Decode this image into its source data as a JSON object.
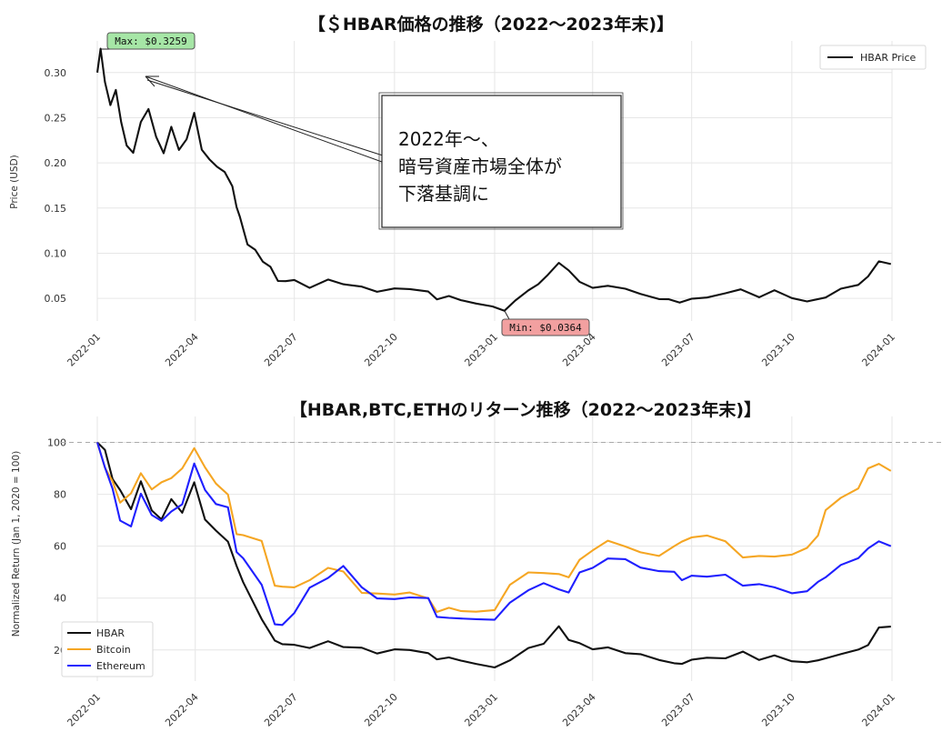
{
  "chart_data": [
    {
      "type": "line",
      "title": "【＄HBAR価格の推移（2022〜2023年末)】",
      "xlabel": "",
      "ylabel": "Price (USD)",
      "ylim": [
        0.025,
        0.335
      ],
      "yticks": [
        0.05,
        0.1,
        0.15,
        0.2,
        0.25,
        0.3
      ],
      "ytick_labels": [
        "0.05",
        "0.10",
        "0.15",
        "0.20",
        "0.25",
        "0.30"
      ],
      "xticks": [
        "2022-01",
        "2022-04",
        "2022-07",
        "2022-10",
        "2023-01",
        "2023-04",
        "2023-07",
        "2023-10",
        "2024-01"
      ],
      "grid": true,
      "legend": {
        "position": "top-right",
        "entries": [
          "HBAR Price"
        ]
      },
      "series": [
        {
          "name": "HBAR Price",
          "color": "#111111",
          "x": [
            "2022-01-01",
            "2022-01-04",
            "2022-01-08",
            "2022-01-13",
            "2022-01-18",
            "2022-01-23",
            "2022-01-28",
            "2022-02-03",
            "2022-02-10",
            "2022-02-17",
            "2022-02-24",
            "2022-03-03",
            "2022-03-10",
            "2022-03-17",
            "2022-03-24",
            "2022-03-31",
            "2022-04-07",
            "2022-04-14",
            "2022-04-21",
            "2022-04-28",
            "2022-05-05",
            "2022-05-09",
            "2022-05-12",
            "2022-05-19",
            "2022-05-26",
            "2022-06-02",
            "2022-06-09",
            "2022-06-16",
            "2022-06-23",
            "2022-07-01",
            "2022-07-15",
            "2022-08-01",
            "2022-08-15",
            "2022-09-01",
            "2022-09-15",
            "2022-10-01",
            "2022-10-15",
            "2022-11-01",
            "2022-11-09",
            "2022-11-20",
            "2022-12-01",
            "2022-12-15",
            "2022-12-30",
            "2023-01-10",
            "2023-01-20",
            "2023-02-01",
            "2023-02-10",
            "2023-02-18",
            "2023-03-01",
            "2023-03-10",
            "2023-03-20",
            "2023-04-01",
            "2023-04-15",
            "2023-05-01",
            "2023-05-15",
            "2023-06-01",
            "2023-06-10",
            "2023-06-20",
            "2023-07-01",
            "2023-07-15",
            "2023-08-01",
            "2023-08-15",
            "2023-09-01",
            "2023-09-15",
            "2023-10-01",
            "2023-10-15",
            "2023-11-01",
            "2023-11-15",
            "2023-12-01",
            "2023-12-10",
            "2023-12-20",
            "2023-12-31"
          ],
          "values": [
            0.3,
            0.326,
            0.29,
            0.265,
            0.28,
            0.245,
            0.22,
            0.21,
            0.245,
            0.26,
            0.23,
            0.21,
            0.24,
            0.215,
            0.225,
            0.255,
            0.215,
            0.205,
            0.195,
            0.19,
            0.175,
            0.15,
            0.14,
            0.11,
            0.105,
            0.09,
            0.085,
            0.07,
            0.068,
            0.07,
            0.062,
            0.072,
            0.065,
            0.063,
            0.058,
            0.06,
            0.06,
            0.058,
            0.05,
            0.052,
            0.048,
            0.045,
            0.04,
            0.036,
            0.048,
            0.06,
            0.065,
            0.075,
            0.09,
            0.08,
            0.068,
            0.062,
            0.065,
            0.06,
            0.055,
            0.05,
            0.048,
            0.045,
            0.05,
            0.052,
            0.055,
            0.06,
            0.052,
            0.058,
            0.05,
            0.047,
            0.052,
            0.06,
            0.065,
            0.075,
            0.09,
            0.088
          ]
        }
      ],
      "annotations": [
        {
          "text": "Max: $0.3259",
          "x": "2022-01-04",
          "y": 0.3259,
          "color": "#a6e6a6"
        },
        {
          "text": "Min: $0.0364",
          "x": "2023-01-10",
          "y": 0.0364,
          "color": "#f2a0a0"
        }
      ],
      "callout": {
        "lines": [
          "2022年〜、",
          "暗号資産市場全体が",
          "下落基調に"
        ]
      }
    },
    {
      "type": "line",
      "title": "【HBAR,BTC,ETHのリターン推移（2022〜2023年末)】",
      "xlabel": "",
      "ylabel": "Normalized Return (Jan 1, 2020 = 100)",
      "ylim": [
        8,
        110
      ],
      "yticks": [
        20,
        40,
        60,
        80,
        100
      ],
      "ytick_labels": [
        "20",
        "40",
        "60",
        "80",
        "100"
      ],
      "reference_line": 100,
      "xticks": [
        "2022-01",
        "2022-04",
        "2022-07",
        "2022-10",
        "2023-01",
        "2023-04",
        "2023-07",
        "2023-10",
        "2024-01"
      ],
      "grid": true,
      "legend": {
        "position": "bottom-left",
        "entries": [
          "HBAR",
          "Bitcoin",
          "Ethereum"
        ]
      },
      "x": [
        "2022-01-01",
        "2022-01-08",
        "2022-01-15",
        "2022-01-22",
        "2022-02-01",
        "2022-02-10",
        "2022-02-20",
        "2022-03-01",
        "2022-03-10",
        "2022-03-20",
        "2022-03-31",
        "2022-04-10",
        "2022-04-20",
        "2022-05-01",
        "2022-05-09",
        "2022-05-15",
        "2022-06-01",
        "2022-06-13",
        "2022-06-20",
        "2022-07-01",
        "2022-07-15",
        "2022-08-01",
        "2022-08-15",
        "2022-09-01",
        "2022-09-15",
        "2022-10-01",
        "2022-10-15",
        "2022-11-01",
        "2022-11-09",
        "2022-11-20",
        "2022-12-01",
        "2022-12-15",
        "2023-01-01",
        "2023-01-15",
        "2023-02-01",
        "2023-02-15",
        "2023-03-01",
        "2023-03-10",
        "2023-03-20",
        "2023-04-01",
        "2023-04-15",
        "2023-05-01",
        "2023-05-15",
        "2023-06-01",
        "2023-06-15",
        "2023-06-22",
        "2023-07-01",
        "2023-07-15",
        "2023-08-01",
        "2023-08-17",
        "2023-09-01",
        "2023-09-15",
        "2023-10-01",
        "2023-10-15",
        "2023-10-25",
        "2023-11-01",
        "2023-11-15",
        "2023-12-01",
        "2023-12-10",
        "2023-12-20",
        "2023-12-31"
      ],
      "series": [
        {
          "name": "HBAR",
          "color": "#111111",
          "values": [
            100,
            97,
            86,
            82,
            74,
            85,
            74,
            70,
            78,
            73,
            85,
            70,
            66,
            62,
            52,
            46,
            32,
            24,
            22,
            22,
            21,
            23,
            21,
            21,
            19,
            20,
            20,
            19,
            16,
            17,
            16,
            15,
            13,
            16,
            21,
            22,
            29,
            24,
            23,
            20,
            21,
            19,
            18,
            16,
            15,
            15,
            16,
            17,
            17,
            19,
            16,
            18,
            16,
            15,
            16,
            17,
            18,
            20,
            22,
            29,
            29
          ]
        },
        {
          "name": "Bitcoin",
          "color": "#f5a623",
          "values": [
            100,
            90,
            85,
            77,
            80,
            88,
            82,
            85,
            86,
            90,
            98,
            90,
            84,
            80,
            65,
            64,
            62,
            45,
            44,
            44,
            47,
            52,
            50,
            42,
            42,
            41,
            42,
            40,
            35,
            36,
            35,
            35,
            35,
            45,
            50,
            50,
            49,
            48,
            55,
            58,
            62,
            60,
            58,
            56,
            60,
            62,
            63,
            64,
            62,
            56,
            56,
            56,
            57,
            59,
            64,
            74,
            79,
            82,
            90,
            92,
            89
          ]
        },
        {
          "name": "Ethereum",
          "color": "#1f1fff",
          "values": [
            100,
            90,
            82,
            70,
            68,
            80,
            72,
            70,
            73,
            76,
            92,
            82,
            76,
            75,
            58,
            55,
            45,
            30,
            30,
            34,
            44,
            48,
            52,
            44,
            40,
            40,
            40,
            40,
            33,
            32,
            32,
            32,
            32,
            38,
            43,
            46,
            43,
            42,
            50,
            52,
            55,
            55,
            52,
            50,
            50,
            47,
            49,
            48,
            49,
            45,
            45,
            44,
            42,
            43,
            46,
            48,
            53,
            55,
            59,
            62,
            60
          ]
        }
      ]
    }
  ]
}
